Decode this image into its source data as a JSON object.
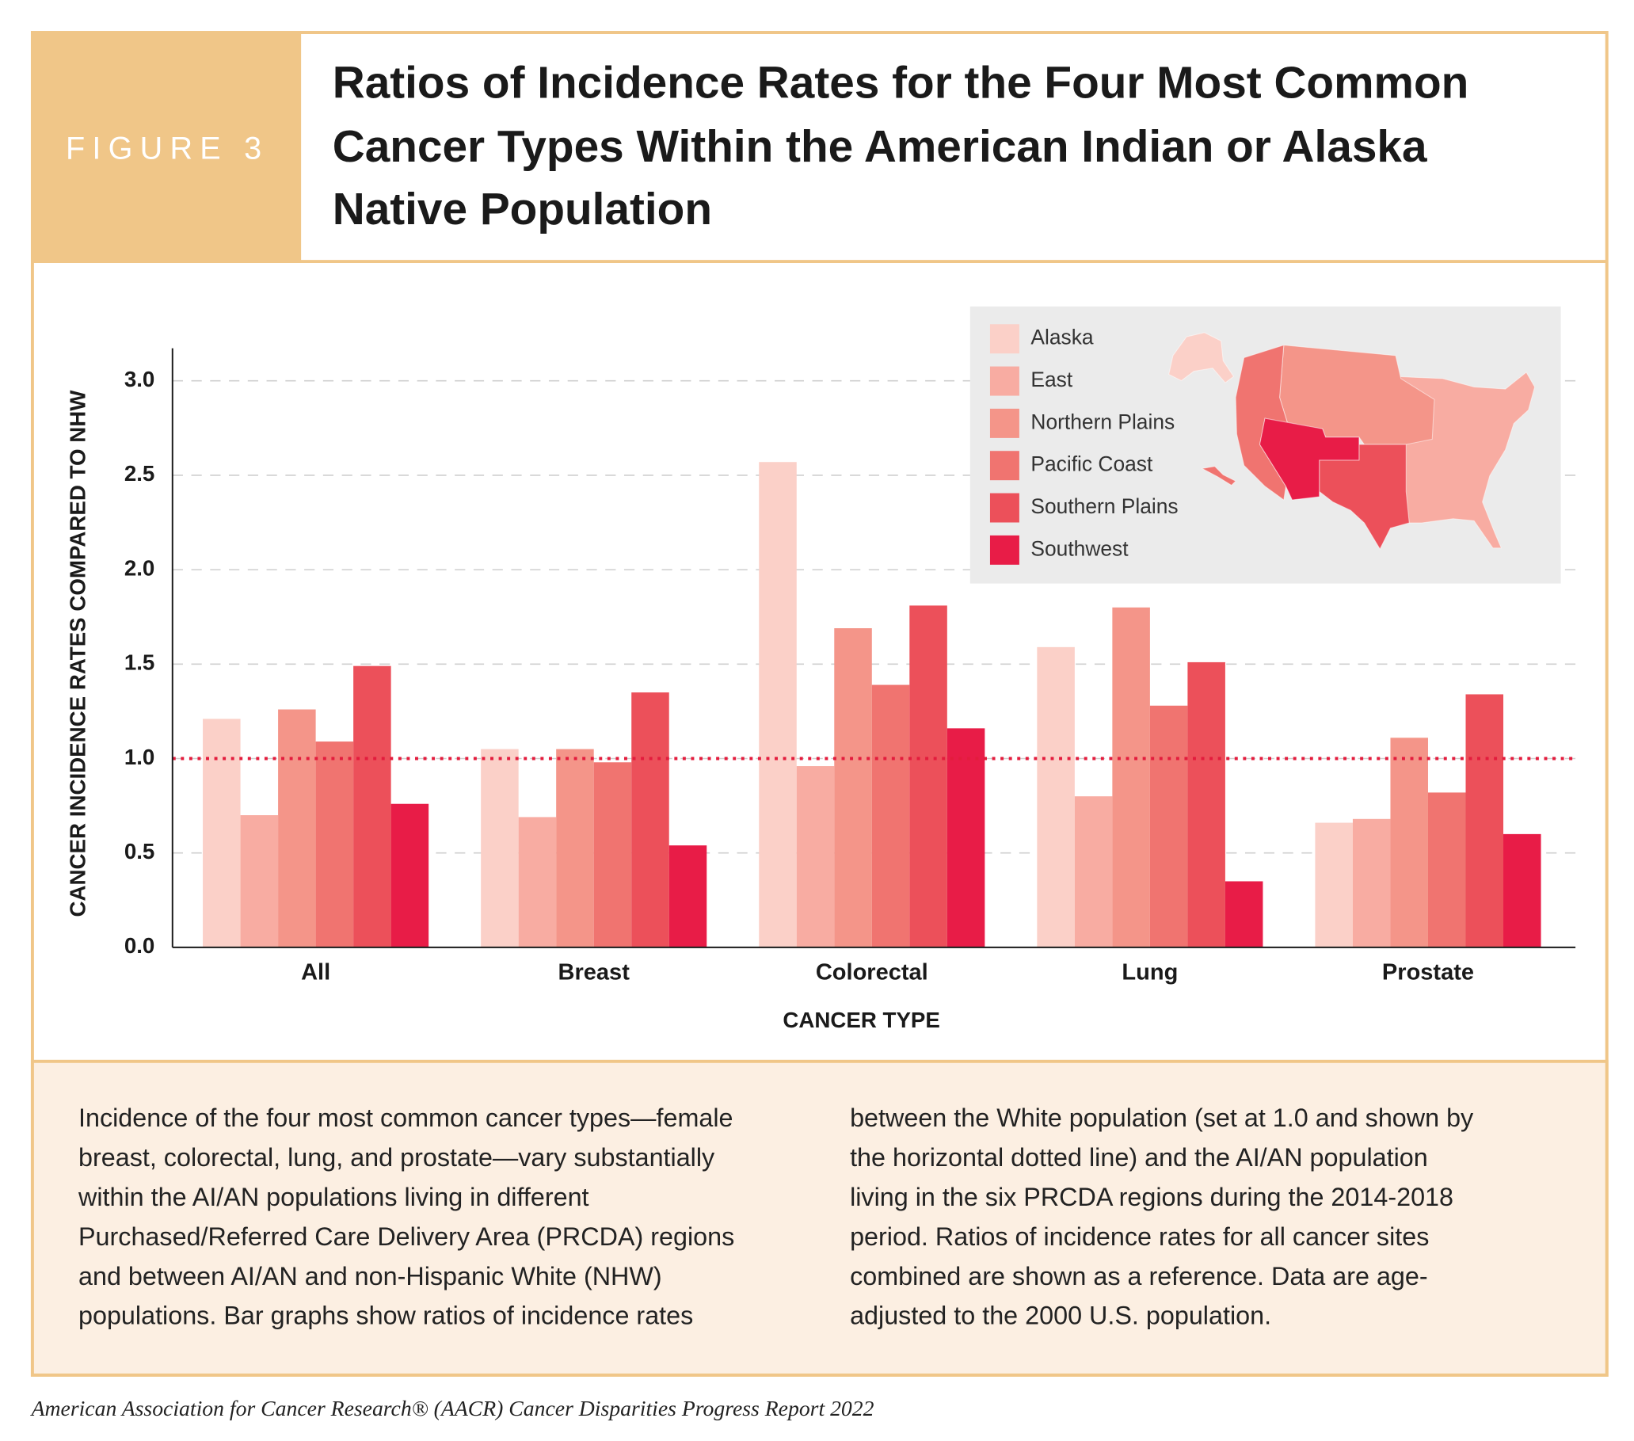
{
  "header": {
    "figure_label": "FIGURE 3",
    "title_lines": [
      "Ratios of Incidence Rates for the Four Most Common",
      "Cancer Types Within the American Indian or Alaska",
      "Native Population"
    ]
  },
  "chart_data": {
    "type": "bar",
    "x_label": "CANCER TYPE",
    "y_label": "CANCER INCIDENCE RATES COMPARED TO NHW",
    "categories": [
      "All",
      "Breast",
      "Colorectal",
      "Lung",
      "Prostate"
    ],
    "series": [
      {
        "name": "Alaska",
        "color": "#fbd0c8",
        "values": [
          1.21,
          1.05,
          2.57,
          1.59,
          0.66
        ]
      },
      {
        "name": "East",
        "color": "#f8aca2",
        "values": [
          0.7,
          0.69,
          0.96,
          0.8,
          0.68
        ]
      },
      {
        "name": "Northern Plains",
        "color": "#f49589",
        "values": [
          1.26,
          1.05,
          1.69,
          1.8,
          1.11
        ]
      },
      {
        "name": "Pacific Coast",
        "color": "#f07470",
        "values": [
          1.09,
          0.98,
          1.39,
          1.28,
          0.82
        ]
      },
      {
        "name": "Southern Plains",
        "color": "#ec505a",
        "values": [
          1.49,
          1.35,
          1.81,
          1.51,
          1.34
        ]
      },
      {
        "name": "Southwest",
        "color": "#e81c47",
        "values": [
          0.76,
          0.54,
          1.16,
          0.35,
          0.6
        ]
      }
    ],
    "ylim": [
      0,
      3.2
    ],
    "yticks": [
      {
        "value": 0,
        "label": "0.0"
      },
      0.5,
      {
        "value": 1,
        "label": "1.0"
      },
      1.5,
      {
        "value": 2,
        "label": "2.0"
      },
      2.5,
      {
        "value": 3,
        "label": "3.0"
      }
    ],
    "grid": true,
    "reference_line": 1,
    "legend_position": "upper right"
  },
  "caption": {
    "column_1": [
      "Incidence of the four most common cancer types—female",
      "breast, colorectal, lung, and prostate—vary substantially",
      "within the AI/AN populations living in different",
      "Purchased/Referred Care Delivery Area (PRCDA) regions",
      "and between AI/AN and non-Hispanic White (NHW)",
      "populations. Bar graphs show ratios of incidence rates"
    ],
    "column_2": [
      "between the White population (set at 1.0 and shown by",
      "the horizontal dotted line) and the AI/AN population",
      "living in the six PRCDA regions during the 2014-2018",
      "period. Ratios of incidence rates for all cancer sites",
      "combined are shown as a reference. Data are age-",
      "adjusted to the 2000 U.S. population."
    ]
  },
  "footer": "American Association for Cancer Research® (AACR) Cancer Disparities Progress Report 2022"
}
